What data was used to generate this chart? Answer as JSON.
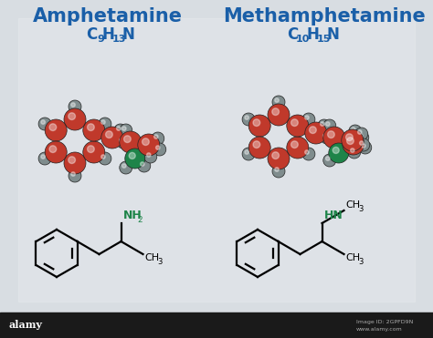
{
  "title_left": "Amphetamine",
  "title_right": "Methamphetamine",
  "title_color": "#1a5fa8",
  "formula_color": "#1a5fa8",
  "red_atom": "#c0392b",
  "gray_atom": "#7f8c8d",
  "green_atom": "#1e8449",
  "bond_color": "#111111",
  "nh2_color": "#1e8449",
  "hn_color": "#1e8449",
  "footer_bg": "#1a1a1a",
  "alamy_text": "alamy",
  "image_id": "Image ID: 2GPFD9N",
  "website": "www.alamy.com",
  "bg_color": "#d8dde2"
}
